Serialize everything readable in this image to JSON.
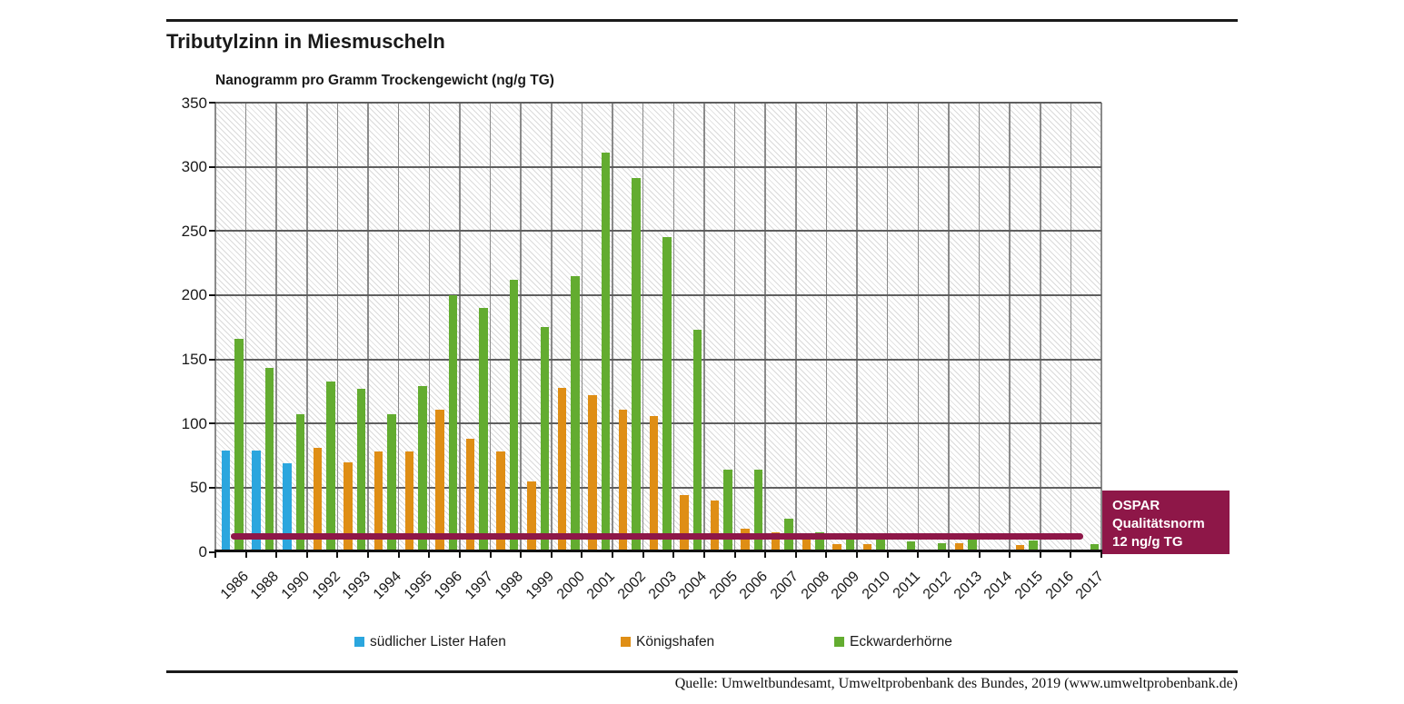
{
  "header": {
    "title": "Tributylzinn in Miesmuscheln"
  },
  "axis_title": "Nanogramm pro Gramm Trockengewicht (ng/g TG)",
  "chart_data": {
    "type": "bar",
    "title": "Tributylzinn in Miesmuscheln",
    "ylabel": "Nanogramm pro Gramm Trockengewicht (ng/g TG)",
    "xlabel": "",
    "ylim": [
      0,
      350
    ],
    "yticks": [
      0,
      50,
      100,
      150,
      200,
      250,
      300,
      350
    ],
    "grid": true,
    "legend_position": "bottom",
    "categories": [
      "1986",
      "1988",
      "1990",
      "1992",
      "1993",
      "1994",
      "1995",
      "1996",
      "1997",
      "1998",
      "1999",
      "2000",
      "2001",
      "2002",
      "2003",
      "2004",
      "2005",
      "2006",
      "2007",
      "2008",
      "2009",
      "2010",
      "2011",
      "2012",
      "2013",
      "2014",
      "2015",
      "2016",
      "2017"
    ],
    "series": [
      {
        "name": "südlicher Lister Hafen",
        "color": "#2BA6DE",
        "values": [
          79,
          79,
          69,
          null,
          null,
          null,
          null,
          null,
          null,
          null,
          null,
          null,
          null,
          null,
          null,
          null,
          null,
          null,
          null,
          null,
          null,
          null,
          null,
          null,
          null,
          null,
          null,
          null,
          null
        ]
      },
      {
        "name": "Königshafen",
        "color": "#DF8E15",
        "values": [
          null,
          null,
          null,
          81,
          70,
          78,
          78,
          111,
          88,
          78,
          55,
          128,
          122,
          111,
          106,
          44,
          40,
          18,
          15,
          10,
          6,
          6,
          2,
          2,
          7,
          null,
          5,
          null,
          2
        ]
      },
      {
        "name": "Eckwarderhörne",
        "color": "#63AC30",
        "values": [
          166,
          143,
          107,
          133,
          127,
          107,
          129,
          200,
          190,
          212,
          175,
          215,
          311,
          291,
          245,
          173,
          64,
          64,
          26,
          15,
          14,
          10,
          8,
          7,
          10,
          null,
          9,
          null,
          6
        ]
      }
    ],
    "reference_line": {
      "value": 12,
      "color": "#8E1748",
      "label": "OSPAR Qualitätsnorm 12 ng/g TG"
    }
  },
  "annotation": {
    "lines": [
      "OSPAR",
      "Qualitätsnorm",
      "12 ng/g TG"
    ],
    "color": "#8E1748"
  },
  "footer": {
    "source": "Quelle: Umweltbundesamt, Umweltprobenbank des Bundes, 2019 (www.umweltprobenbank.de)"
  }
}
